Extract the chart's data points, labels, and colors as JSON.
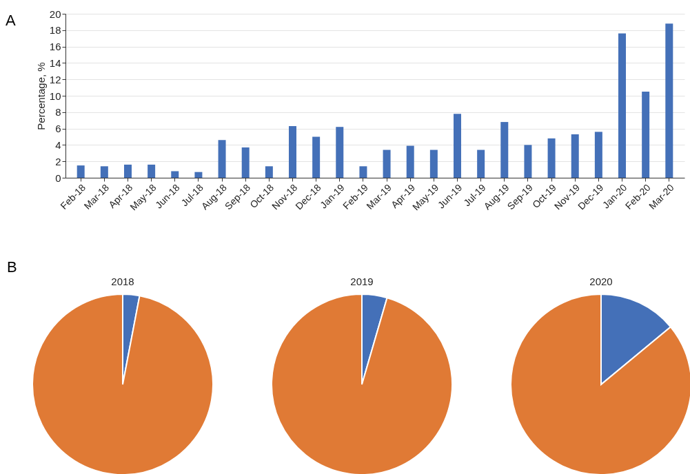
{
  "chart_data": [
    {
      "type": "bar",
      "ylabel": "Percentage, %",
      "annotations": [
        "A"
      ],
      "categories": [
        "Feb-18",
        "Mar-18",
        "Apr-18",
        "May-18",
        "Jun-18",
        "Jul-18",
        "Aug-18",
        "Sep-18",
        "Oct-18",
        "Nov-18",
        "Dec-18",
        "Jan-19",
        "Feb-19",
        "Mar-19",
        "Apr-19",
        "May-19",
        "Jun-19",
        "Jul-19",
        "Aug-19",
        "Sep-19",
        "Oct-19",
        "Nov-19",
        "Dec-19",
        "Jan-20",
        "Feb-20",
        "Mar-20"
      ],
      "values": [
        1.5,
        1.4,
        1.6,
        1.6,
        0.8,
        0.7,
        4.6,
        3.7,
        1.4,
        6.3,
        5.0,
        6.2,
        1.4,
        3.4,
        3.9,
        3.4,
        7.8,
        3.4,
        6.8,
        4.0,
        4.8,
        5.3,
        5.6,
        17.6,
        10.5,
        18.8
      ],
      "color": "#4470b8",
      "ylim": [
        0,
        20
      ],
      "yticks": [
        0,
        2,
        4,
        6,
        8,
        10,
        12,
        14,
        16,
        18,
        20
      ],
      "grid": "y",
      "legend": false
    },
    {
      "type": "pie",
      "title": "2018",
      "annotations": [
        "B"
      ],
      "categories": [
        null,
        null
      ],
      "values": [
        3,
        97
      ],
      "colors": [
        "#4470b8",
        "#e07a35"
      ],
      "legend": false
    },
    {
      "type": "pie",
      "title": "2019",
      "categories": [
        null,
        null
      ],
      "values": [
        4.5,
        95.5
      ],
      "colors": [
        "#4470b8",
        "#e07a35"
      ],
      "legend": false
    },
    {
      "type": "pie",
      "title": "2020",
      "categories": [
        null,
        null
      ],
      "values": [
        14,
        86
      ],
      "colors": [
        "#4470b8",
        "#e07a35"
      ],
      "legend": false
    }
  ]
}
